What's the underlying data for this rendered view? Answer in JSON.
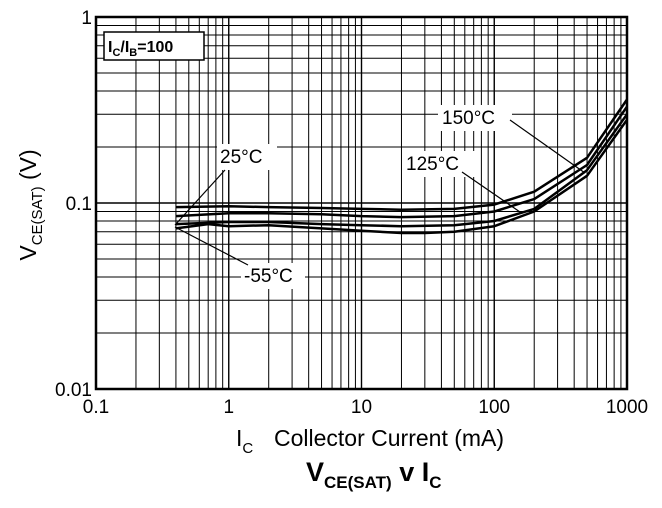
{
  "chart_data": {
    "type": "line",
    "title": {
      "main": "V",
      "sub": "CE(SAT)",
      "mid": " v ",
      "main2": "I",
      "sub2": "C"
    },
    "ylabel": {
      "main": "V",
      "sub": "CE(SAT)",
      "rest": " (V)"
    },
    "xlabel": {
      "main": "I",
      "sub": "C",
      "rest": "Collector Current (mA)"
    },
    "annotation": {
      "i1": "I",
      "s1": "C",
      "slash": "/I",
      "s2": "B",
      "rest": "=100"
    },
    "x_scale": "log",
    "y_scale": "log",
    "xlim": [
      0.1,
      1000
    ],
    "ylim": [
      0.01,
      1
    ],
    "x_ticks": [
      "0.1",
      "1",
      "10",
      "100",
      "1000"
    ],
    "y_ticks": [
      "0.01",
      "0.1",
      "1"
    ],
    "grid": true,
    "series": [
      {
        "name": "150°C",
        "x": [
          0.4,
          1,
          2,
          5,
          10,
          20,
          50,
          100,
          200,
          500,
          1000
        ],
        "y": [
          0.095,
          0.096,
          0.095,
          0.094,
          0.093,
          0.092,
          0.093,
          0.098,
          0.115,
          0.175,
          0.36
        ]
      },
      {
        "name": "125°C",
        "x": [
          0.4,
          1,
          2,
          5,
          10,
          20,
          50,
          100,
          200,
          500,
          1000
        ],
        "y": [
          0.085,
          0.088,
          0.088,
          0.087,
          0.085,
          0.084,
          0.085,
          0.09,
          0.105,
          0.16,
          0.33
        ]
      },
      {
        "name": "25°C",
        "x": [
          0.4,
          1,
          2,
          5,
          10,
          20,
          50,
          100,
          200,
          500,
          1000
        ],
        "y": [
          0.077,
          0.079,
          0.079,
          0.077,
          0.076,
          0.075,
          0.076,
          0.08,
          0.093,
          0.15,
          0.3
        ]
      },
      {
        "name": "-55°C",
        "x": [
          0.4,
          0.7,
          1,
          2,
          5,
          10,
          20,
          30,
          50,
          100,
          200,
          500,
          1000
        ],
        "y": [
          0.073,
          0.077,
          0.075,
          0.076,
          0.073,
          0.071,
          0.069,
          0.069,
          0.07,
          0.075,
          0.09,
          0.14,
          0.28
        ]
      }
    ],
    "line_color": "#000000"
  }
}
